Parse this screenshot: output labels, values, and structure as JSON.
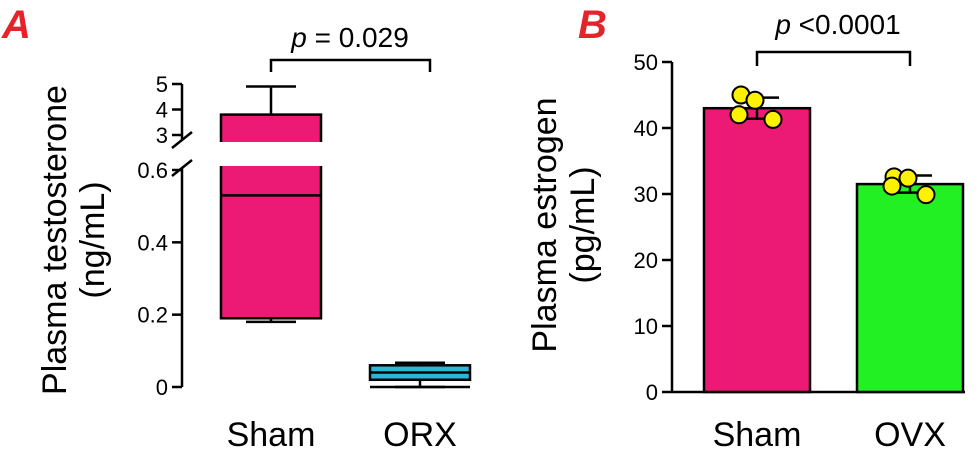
{
  "chart_data": [
    {
      "panel": "A",
      "type": "box",
      "ylabel_line1": "Plasma testosterone",
      "ylabel_line2": "(ng/mL)",
      "categories": [
        "Sham",
        "ORX"
      ],
      "axis_lower": {
        "ylim": [
          0,
          0.6
        ],
        "ticks": [
          0,
          0.2,
          0.4,
          0.6
        ],
        "tick_labels": [
          "0",
          "0.2",
          "0.4",
          "0.6"
        ]
      },
      "axis_upper": {
        "ylim": [
          3,
          5
        ],
        "ticks": [
          3,
          4,
          5
        ],
        "tick_labels": [
          "3",
          "4",
          "5"
        ]
      },
      "boxes": [
        {
          "name": "Sham",
          "min": 0.18,
          "q1": 0.19,
          "median": 0.53,
          "q3": 3.8,
          "max": 4.9,
          "color": "#ec1a75"
        },
        {
          "name": "ORX",
          "min": 0.0,
          "q1": 0.02,
          "median": 0.04,
          "q3": 0.06,
          "max": 0.067,
          "color": "#2bb5d8"
        }
      ],
      "significance": {
        "p_prefix": "p",
        "p_suffix": " = 0.029",
        "between": [
          "Sham",
          "ORX"
        ]
      }
    },
    {
      "panel": "B",
      "type": "bar",
      "ylabel_line1": "Plasma estrogen",
      "ylabel_line2": "(pg/mL)",
      "categories": [
        "Sham",
        "OVX"
      ],
      "ylim": [
        0,
        50
      ],
      "ticks": [
        0,
        10,
        20,
        30,
        40,
        50
      ],
      "tick_labels": [
        "0",
        "10",
        "20",
        "30",
        "40",
        "50"
      ],
      "series": [
        {
          "name": "Sham",
          "value": 43.0,
          "error": 1.6,
          "color": "#ec1a75",
          "points": [
            45.0,
            44.2,
            42.0,
            41.3
          ]
        },
        {
          "name": "OVX",
          "value": 31.5,
          "error": 1.3,
          "color": "#22f022",
          "points": [
            32.6,
            32.4,
            31.2,
            29.9
          ]
        }
      ],
      "point_color": "#fff200",
      "significance": {
        "p_prefix": "p",
        "p_suffix": " <0.0001",
        "between": [
          "Sham",
          "OVX"
        ]
      }
    }
  ]
}
